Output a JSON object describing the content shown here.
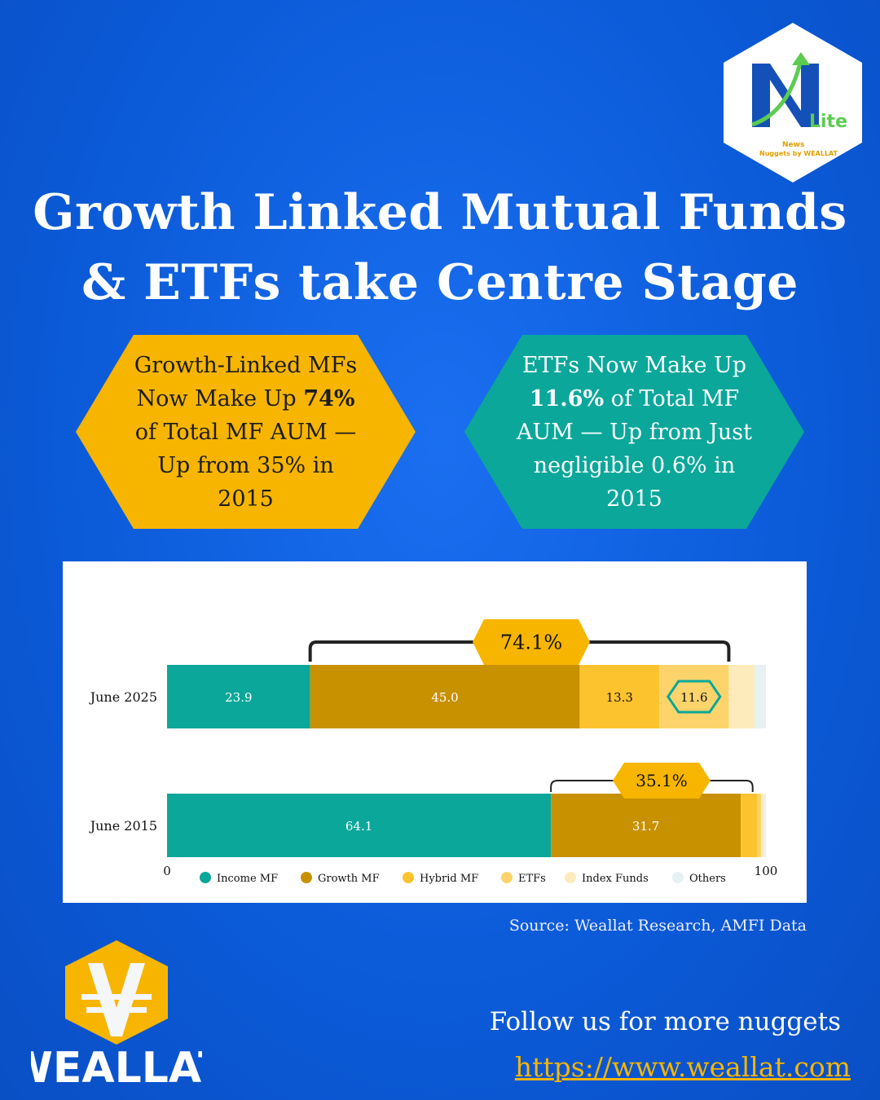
{
  "title_lines": [
    "Growth Linked Mutual Funds",
    "& ETFs take Centre Stage"
  ],
  "callouts": {
    "left": {
      "pre": "Growth-Linked MFs Now Make Up ",
      "bold": "74%",
      "post": " of Total MF AUM — Up from 35% in 2015"
    },
    "right": {
      "pre": "ETFs Now Make Up ",
      "bold": "11.6%",
      "post": " of Total MF AUM — Up from Just negligible 0.6% in 2015"
    }
  },
  "chart_data": {
    "type": "bar",
    "orientation": "horizontal",
    "stacked": true,
    "categories": [
      "June 2025",
      "June 2015"
    ],
    "series": [
      {
        "name": "Income MF",
        "values": [
          23.9,
          64.1
        ],
        "color": "#0aa79a"
      },
      {
        "name": "Growth MF",
        "values": [
          45.0,
          31.7
        ],
        "color": "#c89100"
      },
      {
        "name": "Hybrid MF",
        "values": [
          13.3,
          2.8
        ],
        "color": "#fdc32f"
      },
      {
        "name": "ETFs",
        "values": [
          11.6,
          0.6
        ],
        "color": "#fdd46b"
      },
      {
        "name": "Index Funds",
        "values": [
          4.3,
          0.5
        ],
        "color": "#feebbb"
      },
      {
        "name": "Others",
        "values": [
          1.9,
          0.3
        ],
        "color": "#e6f1f3"
      }
    ],
    "data_labels": [
      [
        "23.9",
        "45.0",
        "13.3",
        "11.6"
      ],
      [
        "64.1",
        "31.7"
      ]
    ],
    "annotations": [
      "74.1%",
      "35.1%"
    ],
    "xlim": [
      0,
      100
    ],
    "x_ticks": [
      "0",
      "100"
    ],
    "legend": "bottom",
    "grid": false
  },
  "source": "Source: Weallat Research, AMFI Data",
  "footer": {
    "follow": "Follow us for more nuggets",
    "url": "https://www.weallat.com",
    "brand": "WEALLAT"
  },
  "badge": {
    "letter": "N",
    "lite": "Lite",
    "line1": "News",
    "line2": "Nuggets by WEALLAT"
  }
}
